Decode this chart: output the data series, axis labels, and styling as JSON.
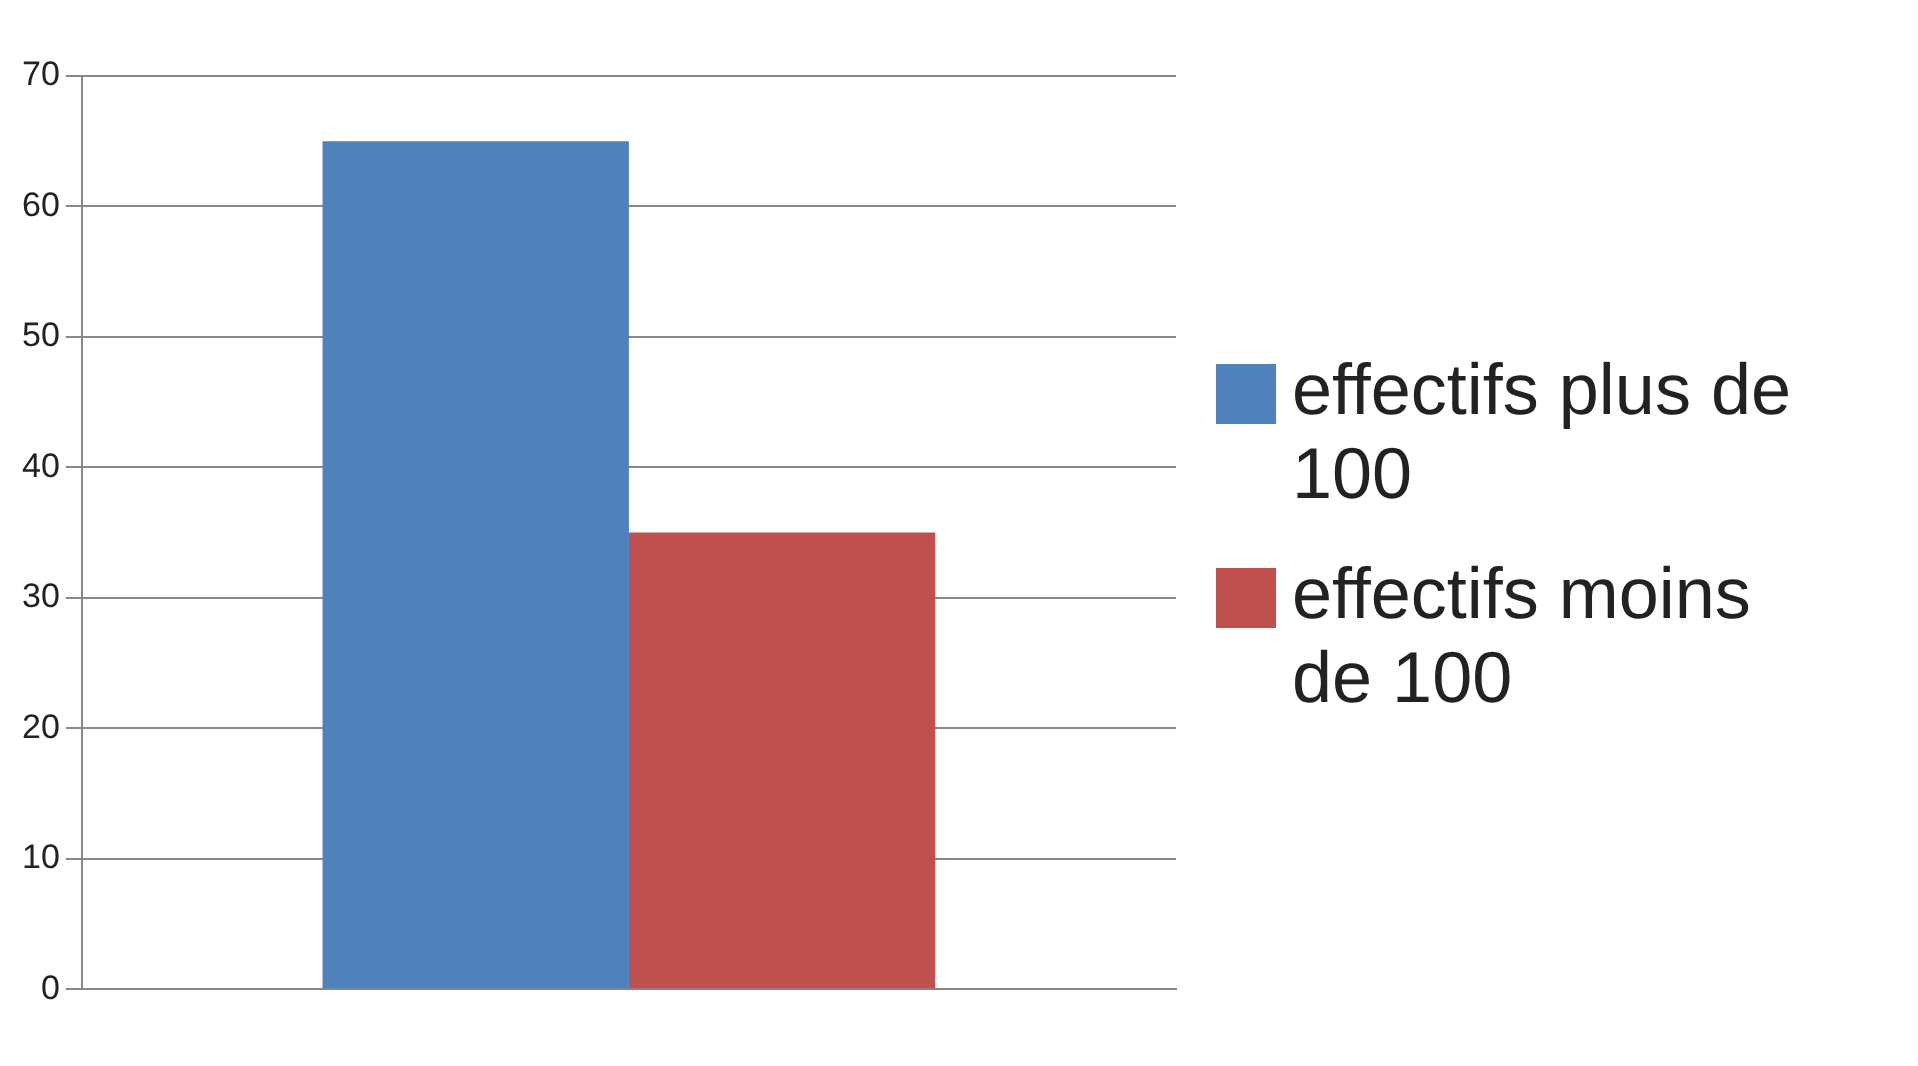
{
  "chart_data": {
    "type": "bar",
    "categories": [
      null
    ],
    "series": [
      {
        "name": "effectifs plus de 100",
        "color": "#4f81bd",
        "values": [
          65
        ]
      },
      {
        "name": "effectifs moins de 100",
        "color": "#c0504d",
        "values": [
          35
        ]
      }
    ],
    "ylim": [
      0,
      70
    ],
    "yticks": [
      0,
      10,
      20,
      30,
      40,
      50,
      60,
      70
    ],
    "grid": "y",
    "legend": "right"
  }
}
